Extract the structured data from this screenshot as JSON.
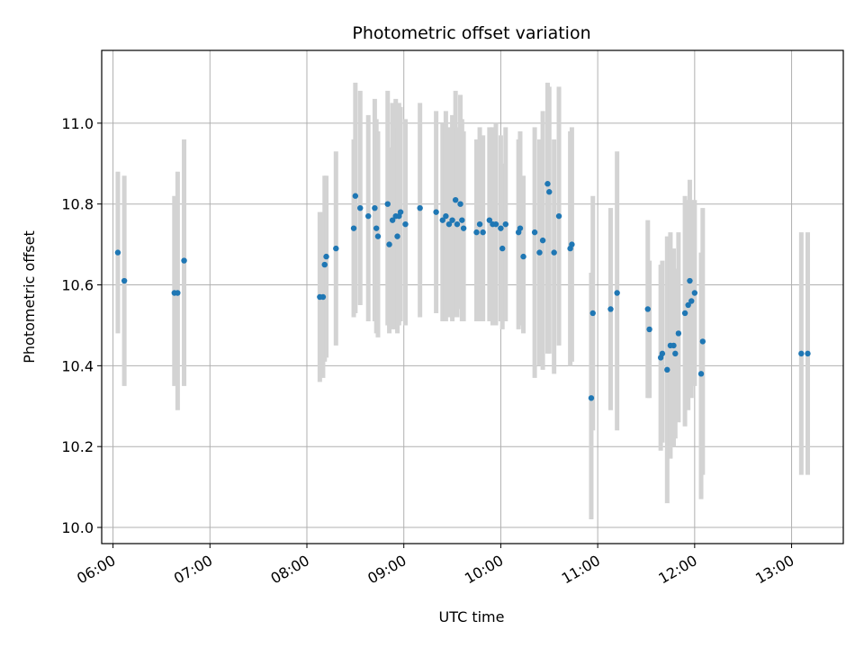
{
  "chart_data": {
    "type": "scatter",
    "title": "Photometric offset variation",
    "xlabel": "UTC time",
    "ylabel": "Photometric offset",
    "x_axis_kind": "time-of-day",
    "xlim": [
      "05:53",
      "13:32"
    ],
    "ylim": [
      9.96,
      11.18
    ],
    "x_ticks": [
      "06:00",
      "07:00",
      "08:00",
      "09:00",
      "10:00",
      "11:00",
      "12:00",
      "13:00"
    ],
    "y_ticks": [
      "10.0",
      "10.2",
      "10.4",
      "10.6",
      "10.8",
      "11.0"
    ],
    "grid": true,
    "marker_color": "#1f77b4",
    "errorbar_color": "#d3d3d3",
    "x": [
      "06:03",
      "06:07",
      "06:38",
      "06:40",
      "06:44",
      "08:08",
      "08:10",
      "08:11",
      "08:12",
      "08:18",
      "08:29",
      "08:30",
      "08:33",
      "08:38",
      "08:42",
      "08:43",
      "08:44",
      "08:50",
      "08:51",
      "08:53",
      "08:55",
      "08:56",
      "08:57",
      "08:58",
      "09:01",
      "09:10",
      "09:20",
      "09:24",
      "09:26",
      "09:28",
      "09:30",
      "09:32",
      "09:33",
      "09:35",
      "09:36",
      "09:37",
      "09:45",
      "09:47",
      "09:49",
      "09:53",
      "09:55",
      "09:57",
      "10:00",
      "10:01",
      "10:03",
      "10:11",
      "10:12",
      "10:14",
      "10:21",
      "10:24",
      "10:26",
      "10:29",
      "10:30",
      "10:33",
      "10:36",
      "10:43",
      "10:44",
      "10:56",
      "10:57",
      "11:08",
      "11:12",
      "11:31",
      "11:32",
      "11:39",
      "11:40",
      "11:43",
      "11:45",
      "11:47",
      "11:48",
      "11:50",
      "11:54",
      "11:56",
      "11:57",
      "11:58",
      "12:00",
      "12:04",
      "12:05"
    ],
    "values": [
      10.68,
      10.61,
      10.58,
      10.58,
      10.66,
      10.57,
      10.57,
      10.65,
      10.67,
      10.69,
      10.74,
      10.82,
      10.79,
      10.77,
      10.79,
      10.74,
      10.72,
      10.8,
      10.7,
      10.76,
      10.77,
      10.72,
      10.77,
      10.78,
      10.75,
      10.79,
      10.78,
      10.76,
      10.77,
      10.75,
      10.76,
      10.81,
      10.75,
      10.8,
      10.76,
      10.74,
      10.73,
      10.75,
      10.73,
      10.76,
      10.75,
      10.75,
      10.74,
      10.69,
      10.75,
      10.73,
      10.74,
      10.67,
      10.73,
      10.68,
      10.71,
      10.85,
      10.83,
      10.68,
      10.77,
      10.69,
      10.7,
      10.32,
      10.53,
      10.54,
      10.58,
      10.54,
      10.49,
      10.42,
      10.43,
      10.39,
      10.45,
      10.45,
      10.43,
      10.48,
      10.53,
      10.55,
      10.61,
      10.56,
      10.58,
      10.38,
      10.46
    ],
    "err_low": [
      10.48,
      10.35,
      10.35,
      10.29,
      10.35,
      10.36,
      10.37,
      10.41,
      10.42,
      10.45,
      10.52,
      10.53,
      10.55,
      10.51,
      10.51,
      10.48,
      10.47,
      10.5,
      10.48,
      10.49,
      10.49,
      10.48,
      10.5,
      10.51,
      10.5,
      10.52,
      10.53,
      10.51,
      10.51,
      10.52,
      10.51,
      10.52,
      10.52,
      10.54,
      10.51,
      10.51,
      10.51,
      10.51,
      10.51,
      10.51,
      10.5,
      10.5,
      10.51,
      10.49,
      10.51,
      10.49,
      10.5,
      10.48,
      10.37,
      10.4,
      10.39,
      10.43,
      10.43,
      10.38,
      10.45,
      10.4,
      10.41,
      10.02,
      10.24,
      10.29,
      10.24,
      10.32,
      10.32,
      10.19,
      10.21,
      10.06,
      10.17,
      10.2,
      10.22,
      10.26,
      10.25,
      10.29,
      10.35,
      10.32,
      10.35,
      10.07,
      10.13
    ],
    "err_high": [
      10.88,
      10.87,
      10.82,
      10.88,
      10.96,
      10.78,
      10.78,
      10.87,
      10.87,
      10.93,
      10.96,
      11.1,
      11.08,
      11.02,
      11.06,
      11.01,
      10.98,
      11.08,
      10.94,
      11.05,
      11.06,
      10.99,
      11.05,
      11.04,
      11.01,
      11.05,
      11.03,
      11.0,
      11.03,
      10.99,
      11.02,
      11.08,
      10.99,
      11.07,
      11.01,
      10.98,
      10.96,
      10.99,
      10.97,
      10.99,
      10.99,
      11.0,
      10.97,
      10.9,
      10.99,
      10.96,
      10.98,
      10.87,
      10.99,
      10.96,
      11.03,
      11.1,
      11.09,
      10.96,
      11.09,
      10.98,
      10.99,
      10.63,
      10.82,
      10.79,
      10.93,
      10.76,
      10.66,
      10.65,
      10.66,
      10.72,
      10.73,
      10.69,
      10.64,
      10.73,
      10.82,
      10.81,
      10.86,
      10.81,
      10.81,
      10.68,
      10.79
    ],
    "series2_x": [
      "13:06",
      "13:10"
    ],
    "series2_values": [
      10.43,
      10.43
    ],
    "series2_err_low": [
      10.13,
      10.13
    ],
    "series2_err_high": [
      10.73,
      10.73
    ]
  }
}
